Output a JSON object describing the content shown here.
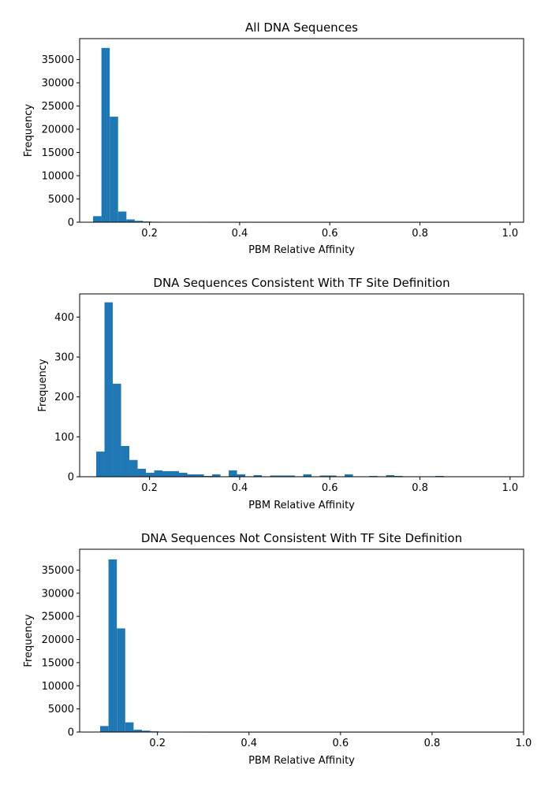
{
  "chart_data": [
    {
      "type": "bar",
      "title": "All DNA Sequences",
      "xlabel": "PBM Relative Affinity",
      "ylabel": "Frequency",
      "xlim": [
        0.045,
        1.03
      ],
      "ylim": [
        0,
        39500
      ],
      "xticks": [
        0.2,
        0.4,
        0.6,
        0.8,
        1.0
      ],
      "xtick_labels": [
        "0.2",
        "0.4",
        "0.6",
        "0.8",
        "1.0"
      ],
      "yticks": [
        0,
        5000,
        10000,
        15000,
        20000,
        25000,
        30000,
        35000
      ],
      "ytick_labels": [
        "0",
        "5000",
        "10000",
        "15000",
        "20000",
        "25000",
        "30000",
        "35000"
      ],
      "bin_start": 0.0748,
      "bin_width": 0.0185,
      "values": [
        1300,
        37500,
        22700,
        2300,
        600,
        300,
        150,
        100,
        60,
        50,
        30,
        20,
        15,
        10,
        8,
        8,
        5,
        5,
        5,
        4,
        4,
        3,
        3,
        3,
        2,
        2,
        2,
        2,
        2,
        2,
        1,
        1,
        1,
        1,
        1,
        1,
        1,
        1,
        1,
        1,
        1,
        1,
        1,
        1,
        1,
        1,
        1,
        1,
        1,
        1
      ]
    },
    {
      "type": "bar",
      "title": "DNA Sequences Consistent With TF Site Definition",
      "xlabel": "PBM Relative Affinity",
      "ylabel": "Frequency",
      "xlim": [
        0.045,
        1.03
      ],
      "ylim": [
        0,
        458
      ],
      "xticks": [
        0.2,
        0.4,
        0.6,
        0.8,
        1.0
      ],
      "xtick_labels": [
        "0.2",
        "0.4",
        "0.6",
        "0.8",
        "1.0"
      ],
      "yticks": [
        0,
        100,
        200,
        300,
        400
      ],
      "ytick_labels": [
        "0",
        "100",
        "200",
        "300",
        "400"
      ],
      "bin_start": 0.0818,
      "bin_width": 0.01837,
      "values": [
        63,
        437,
        233,
        77,
        42,
        20,
        10,
        16,
        14,
        14,
        10,
        6,
        6,
        2,
        6,
        0,
        16,
        6,
        0,
        4,
        0,
        3,
        3,
        3,
        0,
        6,
        0,
        3,
        3,
        0,
        6,
        0,
        0,
        2,
        0,
        4,
        2,
        0,
        0,
        0,
        0,
        2,
        0,
        0,
        0,
        0,
        0,
        0,
        1,
        1
      ]
    },
    {
      "type": "bar",
      "title": "DNA Sequences Not Consistent With TF Site Definition",
      "xlabel": "PBM Relative Affinity",
      "ylabel": "Frequency",
      "xlim": [
        0.03,
        1.0
      ],
      "ylim": [
        0,
        39500
      ],
      "xticks": [
        0.2,
        0.4,
        0.6,
        0.8,
        1.0
      ],
      "xtick_labels": [
        "0.2",
        "0.4",
        "0.6",
        "0.8",
        "1.0"
      ],
      "yticks": [
        0,
        5000,
        10000,
        15000,
        20000,
        25000,
        30000,
        35000
      ],
      "ytick_labels": [
        "0",
        "5000",
        "10000",
        "15000",
        "20000",
        "25000",
        "30000",
        "35000"
      ],
      "bin_start": 0.0748,
      "bin_width": 0.01826,
      "values": [
        1300,
        37300,
        22400,
        2100,
        500,
        300,
        150,
        60,
        30,
        20,
        10,
        8,
        6,
        4,
        3,
        3,
        2,
        2,
        2,
        2,
        1,
        1,
        1,
        1,
        1,
        1,
        1,
        1,
        1,
        1,
        1,
        1,
        1,
        1,
        1,
        1,
        1,
        1,
        1,
        1,
        1,
        1,
        1,
        1,
        1,
        1,
        1,
        1,
        1,
        1
      ]
    }
  ],
  "colors": {
    "bar": "#1f77b4",
    "axes": "#000000",
    "background": "#ffffff"
  }
}
